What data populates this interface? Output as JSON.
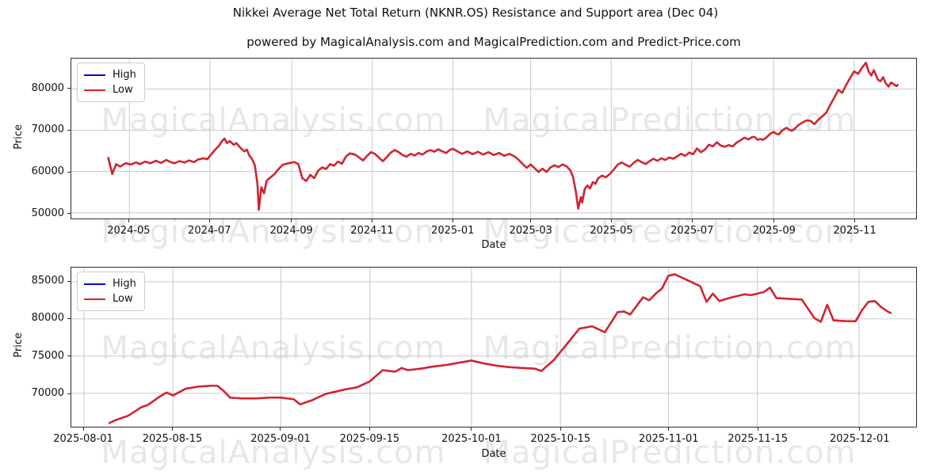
{
  "figure": {
    "title": "Nikkei Average Net Total Return (NKNR.OS) Resistance and Support area (Dec 04)",
    "subtitle": "powered by MagicalAnalysis.com and MagicalPrediction.com and Predict-Price.com",
    "watermarks": [
      "MagicalAnalysis.com",
      "MagicalPrediction.com"
    ],
    "background": "#ffffff",
    "grid_color": "#c8c8c8",
    "spine_color": "#2b2b2b"
  },
  "chart_data": [
    {
      "type": "line",
      "title": "",
      "xlabel": "Date",
      "ylabel": "Price",
      "grid": true,
      "legend_position": "upper left",
      "legend": [
        {
          "label": "High",
          "color": "#0000dd"
        },
        {
          "label": "Low",
          "color": "#dd2222"
        }
      ],
      "note": "High and Low curves coincide at this scale; red Low drawn over blue High",
      "x_unit": "days since 2024-04-15",
      "xlim_days": [
        -28,
        612
      ],
      "ylim": [
        48600,
        87400
      ],
      "y_ticks": [
        50000,
        60000,
        70000,
        80000
      ],
      "x_ticks": [
        {
          "label": "2024-05",
          "day": 16
        },
        {
          "label": "2024-07",
          "day": 77
        },
        {
          "label": "2024-09",
          "day": 139
        },
        {
          "label": "2024-11",
          "day": 200
        },
        {
          "label": "2025-01",
          "day": 261
        },
        {
          "label": "2025-03",
          "day": 320
        },
        {
          "label": "2025-05",
          "day": 381
        },
        {
          "label": "2025-07",
          "day": 442
        },
        {
          "label": "2025-09",
          "day": 504
        },
        {
          "label": "2025-11",
          "day": 565
        }
      ],
      "x_days": [
        0,
        3,
        6,
        9,
        13,
        17,
        21,
        24,
        28,
        32,
        36,
        40,
        44,
        47,
        50,
        54,
        58,
        61,
        65,
        68,
        72,
        75,
        78,
        81,
        84,
        86,
        88,
        90,
        92,
        95,
        97,
        100,
        103,
        105,
        107,
        109,
        111,
        113,
        114,
        116,
        118,
        120,
        123,
        126,
        129,
        132,
        135,
        138,
        141,
        144,
        147,
        150,
        153,
        156,
        159,
        162,
        165,
        168,
        171,
        174,
        177,
        180,
        183,
        187,
        190,
        193,
        196,
        199,
        202,
        205,
        208,
        211,
        214,
        217,
        220,
        223,
        226,
        229,
        232,
        235,
        238,
        241,
        244,
        247,
        250,
        253,
        256,
        259,
        261,
        264,
        268,
        272,
        276,
        280,
        284,
        288,
        292,
        296,
        300,
        304,
        308,
        311,
        314,
        317,
        320,
        323,
        326,
        329,
        332,
        335,
        338,
        341,
        344,
        347,
        350,
        352,
        354,
        356,
        358,
        359,
        361,
        363,
        365,
        367,
        369,
        371,
        374,
        377,
        380,
        383,
        386,
        389,
        392,
        395,
        398,
        401,
        404,
        407,
        410,
        413,
        416,
        419,
        422,
        425,
        428,
        431,
        434,
        437,
        440,
        443,
        446,
        449,
        452,
        455,
        458,
        461,
        464,
        467,
        470,
        473,
        476,
        479,
        482,
        485,
        488,
        490,
        492,
        494,
        496,
        498,
        500,
        502,
        504,
        506,
        508,
        510,
        512,
        514,
        516,
        518,
        520,
        523,
        526,
        529,
        532,
        535,
        538,
        541,
        544,
        547,
        550,
        553,
        556,
        559,
        562,
        565,
        568,
        571,
        574,
        576,
        578,
        580,
        583,
        585,
        587,
        589,
        591,
        593,
        595,
        597,
        598
      ],
      "values": [
        63300,
        59400,
        61800,
        61200,
        62000,
        61700,
        62200,
        61800,
        62400,
        62000,
        62600,
        62100,
        62800,
        62300,
        62000,
        62500,
        62200,
        62700,
        62300,
        62900,
        63200,
        63000,
        64200,
        65300,
        66300,
        67300,
        68000,
        66900,
        67400,
        66500,
        66900,
        65800,
        64900,
        65300,
        63800,
        63000,
        61500,
        57000,
        50700,
        56200,
        54700,
        57800,
        58600,
        59400,
        60600,
        61600,
        61900,
        62100,
        62300,
        61800,
        58400,
        57700,
        59200,
        58400,
        60200,
        61000,
        60600,
        61800,
        61400,
        62400,
        61900,
        63600,
        64400,
        64100,
        63400,
        62700,
        63800,
        64700,
        64300,
        63400,
        62500,
        63500,
        64600,
        65200,
        64700,
        64000,
        63600,
        64300,
        63900,
        64500,
        64100,
        64800,
        65200,
        64800,
        65400,
        64900,
        64500,
        65300,
        65500,
        65000,
        64300,
        64900,
        64200,
        64800,
        64100,
        64700,
        64000,
        64500,
        63800,
        64300,
        63600,
        62800,
        61800,
        60900,
        61700,
        60800,
        59900,
        60700,
        59900,
        61000,
        61500,
        61100,
        61700,
        61300,
        60300,
        58800,
        55500,
        51000,
        53800,
        52500,
        55800,
        56600,
        55900,
        57400,
        57000,
        58300,
        59000,
        58600,
        59400,
        60500,
        61700,
        62200,
        61600,
        61200,
        62100,
        62800,
        62300,
        61800,
        62500,
        63100,
        62600,
        63200,
        62800,
        63400,
        63100,
        63700,
        64300,
        63800,
        64600,
        64200,
        65600,
        64700,
        65300,
        66500,
        66100,
        67100,
        66300,
        66000,
        66400,
        66100,
        67000,
        67600,
        68200,
        67800,
        68400,
        68300,
        67700,
        67900,
        67700,
        68100,
        68700,
        69300,
        69600,
        69200,
        69000,
        69800,
        70300,
        70600,
        70100,
        69900,
        70400,
        71300,
        71900,
        72400,
        72300,
        71500,
        72600,
        73400,
        74300,
        76200,
        77900,
        79800,
        79100,
        81000,
        82700,
        84300,
        83700,
        85200,
        86400,
        84300,
        83300,
        84600,
        82300,
        81900,
        82900,
        81400,
        80600,
        81600,
        81200,
        80700,
        81000
      ]
    },
    {
      "type": "line",
      "title": "",
      "xlabel": "Date",
      "ylabel": "Price",
      "grid": true,
      "legend_position": "upper left",
      "legend": [
        {
          "label": "High",
          "color": "#0000dd"
        },
        {
          "label": "Low",
          "color": "#dd2222"
        }
      ],
      "note": "High and Low curves coincide at this scale; red Low drawn over blue High",
      "x_unit": "days since 2025-08-01",
      "xlim_days": [
        -2,
        131
      ],
      "ylim": [
        65500,
        86900
      ],
      "y_ticks": [
        70000,
        75000,
        80000,
        85000
      ],
      "x_ticks": [
        {
          "label": "2025-08-01",
          "day": 0
        },
        {
          "label": "2025-08-15",
          "day": 14
        },
        {
          "label": "2025-09-01",
          "day": 31
        },
        {
          "label": "2025-09-15",
          "day": 45
        },
        {
          "label": "2025-10-01",
          "day": 61
        },
        {
          "label": "2025-10-15",
          "day": 75
        },
        {
          "label": "2025-11-01",
          "day": 92
        },
        {
          "label": "2025-11-15",
          "day": 106
        },
        {
          "label": "2025-12-01",
          "day": 122
        }
      ],
      "x_days": [
        4,
        5,
        7,
        9,
        10,
        12,
        13,
        14,
        16,
        18,
        20,
        21,
        22,
        23,
        25,
        27,
        29,
        31,
        33,
        34,
        36,
        38,
        41,
        43,
        45,
        47,
        48,
        49,
        50,
        51,
        53,
        55,
        57,
        59,
        61,
        63,
        65,
        67,
        69,
        71,
        72,
        74,
        76,
        78,
        80,
        81,
        82,
        84,
        85,
        86,
        88,
        89,
        90,
        91,
        92,
        93,
        95,
        97,
        98,
        99,
        100,
        102,
        104,
        105,
        107,
        108,
        109,
        111,
        113,
        115,
        116,
        117,
        118,
        120,
        121.5,
        122.5,
        123.5,
        124.5,
        125.5,
        126.5,
        127
      ],
      "values": [
        66000,
        66400,
        67000,
        68100,
        68400,
        69600,
        70100,
        69700,
        70600,
        70900,
        71000,
        71000,
        70300,
        69400,
        69300,
        69300,
        69400,
        69400,
        69200,
        68500,
        69100,
        69900,
        70500,
        70800,
        71600,
        73100,
        73000,
        72900,
        73400,
        73100,
        73300,
        73600,
        73800,
        74100,
        74400,
        74000,
        73700,
        73500,
        73400,
        73300,
        73000,
        74500,
        76600,
        78700,
        79000,
        78600,
        78200,
        80900,
        81000,
        80600,
        82900,
        82500,
        83400,
        84100,
        85800,
        86000,
        85200,
        84400,
        82300,
        83400,
        82400,
        82900,
        83300,
        83200,
        83600,
        84200,
        82800,
        82700,
        82600,
        80100,
        79600,
        81900,
        79800,
        79700,
        79700,
        81200,
        82300,
        82400,
        81600,
        81000,
        80800
      ]
    }
  ]
}
